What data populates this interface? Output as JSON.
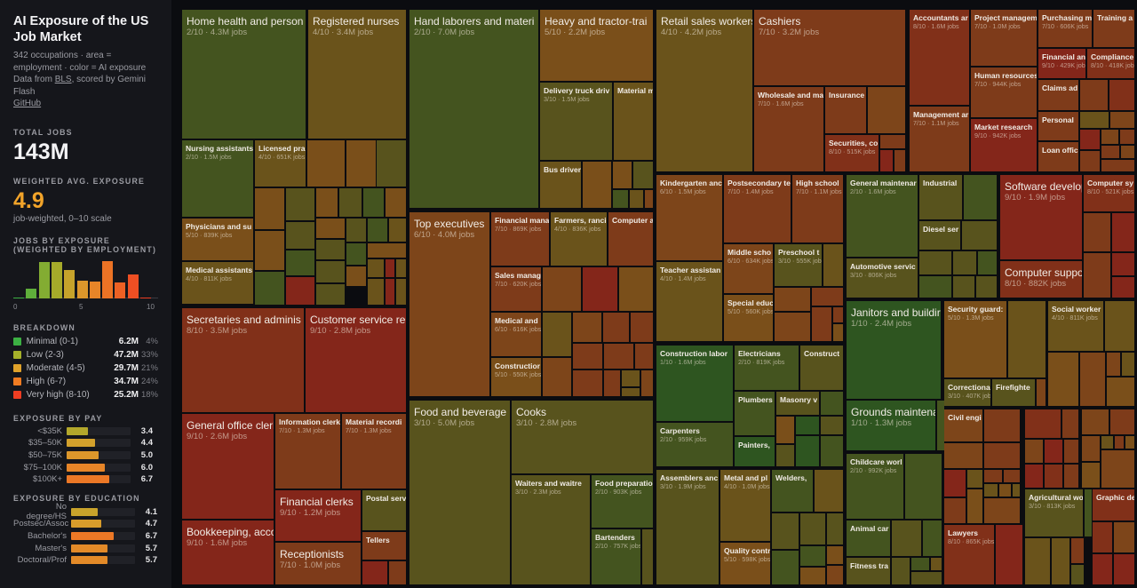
{
  "sidebar": {
    "title": "AI Exposure of the US Job Market",
    "subtitle": "342 occupations · area = employment · color = AI exposure",
    "source_prefix": "Data from ",
    "source_link": "BLS",
    "source_suffix": ", scored by Gemini Flash",
    "github": "GitHub",
    "total_label": "TOTAL JOBS",
    "total_value": "143M",
    "avg_label": "WEIGHTED AVG. EXPOSURE",
    "avg_value": "4.9",
    "avg_note": "job-weighted, 0–10 scale",
    "hist_label": "JOBS BY EXPOSURE",
    "hist_label2": "(WEIGHTED BY EMPLOYMENT)",
    "breakdown_label": "BREAKDOWN",
    "breakdown": [
      {
        "label": "Minimal (0-1)",
        "value": "6.2M",
        "pct": "4%",
        "color": "#3cb043"
      },
      {
        "label": "Low (2-3)",
        "value": "47.2M",
        "pct": "33%",
        "color": "#a6b02a"
      },
      {
        "label": "Moderate (4-5)",
        "value": "29.7M",
        "pct": "21%",
        "color": "#e0a22a"
      },
      {
        "label": "High (6-7)",
        "value": "34.7M",
        "pct": "24%",
        "color": "#f07c22"
      },
      {
        "label": "Very high (8-10)",
        "value": "25.2M",
        "pct": "18%",
        "color": "#ef3d22"
      }
    ],
    "pay_label": "EXPOSURE BY PAY",
    "pay": [
      {
        "label": "<$35K",
        "value": "3.4"
      },
      {
        "label": "$35–50K",
        "value": "4.4"
      },
      {
        "label": "$50–75K",
        "value": "5.0"
      },
      {
        "label": "$75–100K",
        "value": "6.0"
      },
      {
        "label": "$100K+",
        "value": "6.7"
      }
    ],
    "edu_label": "EXPOSURE BY EDUCATION",
    "edu": [
      {
        "label": "No degree/HS",
        "value": "4.1"
      },
      {
        "label": "Postsec/Assoc",
        "value": "4.7"
      },
      {
        "label": "Bachelor's",
        "value": "6.7"
      },
      {
        "label": "Master's",
        "value": "5.7"
      },
      {
        "label": "Doctoral/Prof",
        "value": "5.7"
      }
    ]
  },
  "chart_data": {
    "type": "bar",
    "title": "JOBS BY EXPOSURE (WEIGHTED BY EMPLOYMENT)",
    "categories": [
      0,
      1,
      2,
      3,
      4,
      5,
      6,
      7,
      8,
      9,
      10
    ],
    "values": [
      0.2,
      6.0,
      23.6,
      23.6,
      18.3,
      11.4,
      10.5,
      24.2,
      10.0,
      15.0,
      0.2
    ],
    "xticks": [
      "0",
      "5",
      "10"
    ]
  },
  "score_colors": {
    "1": "#2e5520",
    "2": "#44541f",
    "3": "#58531d",
    "4": "#6a531b",
    "5": "#7a4f1a",
    "6": "#7d451a",
    "7": "#7e3b1a",
    "8": "#813019",
    "9": "#84261a"
  },
  "tiles": [
    {
      "label": "Home health and person",
      "meta": "2/10 · 4.3M jobs",
      "score": 2
    },
    {
      "label": "Registered nurses",
      "meta": "4/10 · 3.4M jobs",
      "score": 4
    },
    {
      "label": "Nursing assistants",
      "meta": "2/10 · 1.5M jobs",
      "score": 2
    },
    {
      "label": "Licensed pra",
      "meta": "4/10 · 651K jobs",
      "score": 4
    },
    {
      "label": "Physicians and su",
      "meta": "5/10 · 839K jobs",
      "score": 5
    },
    {
      "label": "Medical assistants",
      "meta": "4/10 · 811K jobs",
      "score": 4
    },
    {
      "label": "Secretaries and adminis",
      "meta": "8/10 · 3.5M jobs",
      "score": 8
    },
    {
      "label": "Customer service re",
      "meta": "9/10 · 2.8M jobs",
      "score": 9
    },
    {
      "label": "General office clerk",
      "meta": "9/10 · 2.6M jobs",
      "score": 9
    },
    {
      "label": "Bookkeeping, acco",
      "meta": "9/10 · 1.6M jobs",
      "score": 9
    },
    {
      "label": "Information clerk",
      "meta": "7/10 · 1.3M jobs",
      "score": 7
    },
    {
      "label": "Material recordi",
      "meta": "7/10 · 1.3M jobs",
      "score": 7
    },
    {
      "label": "Financial clerks",
      "meta": "9/10 · 1.2M jobs",
      "score": 9
    },
    {
      "label": "Receptionists",
      "meta": "7/10 · 1.0M jobs",
      "score": 7
    },
    {
      "label": "Postal serv",
      "meta": "",
      "score": 3
    },
    {
      "label": "Tellers",
      "meta": "",
      "score": 7
    },
    {
      "label": "Hand laborers and materi",
      "meta": "2/10 · 7.0M jobs",
      "score": 2
    },
    {
      "label": "Heavy and tractor-trai",
      "meta": "5/10 · 2.2M jobs",
      "score": 5
    },
    {
      "label": "Delivery truck driv",
      "meta": "3/10 · 1.5M jobs",
      "score": 3
    },
    {
      "label": "Material m",
      "meta": "",
      "score": 4
    },
    {
      "label": "Bus driver",
      "meta": "",
      "score": 4
    },
    {
      "label": "Top executives",
      "meta": "6/10 · 4.0M jobs",
      "score": 6
    },
    {
      "label": "Financial mana",
      "meta": "7/10 · 869K jobs",
      "score": 7
    },
    {
      "label": "Farmers, ranci",
      "meta": "4/10 · 836K jobs",
      "score": 4
    },
    {
      "label": "Computer a",
      "meta": "",
      "score": 7
    },
    {
      "label": "Sales manag",
      "meta": "7/10 · 620K jobs",
      "score": 7
    },
    {
      "label": "Medical and",
      "meta": "6/10 · 616K jobs",
      "score": 6
    },
    {
      "label": "Constructior",
      "meta": "5/10 · 550K jobs",
      "score": 5
    },
    {
      "label": "Food and beverage",
      "meta": "3/10 · 5.0M jobs",
      "score": 3
    },
    {
      "label": "Cooks",
      "meta": "3/10 · 2.8M jobs",
      "score": 3
    },
    {
      "label": "Waiters and waitre",
      "meta": "3/10 · 2.3M jobs",
      "score": 3
    },
    {
      "label": "Food preparatio",
      "meta": "2/10 · 903K jobs",
      "score": 2
    },
    {
      "label": "Bartenders",
      "meta": "2/10 · 757K jobs",
      "score": 2
    },
    {
      "label": "Retail sales workers",
      "meta": "4/10 · 4.2M jobs",
      "score": 4
    },
    {
      "label": "Cashiers",
      "meta": "7/10 · 3.2M jobs",
      "score": 7
    },
    {
      "label": "Wholesale and ma",
      "meta": "7/10 · 1.6M jobs",
      "score": 7
    },
    {
      "label": "Insurance",
      "meta": "",
      "score": 7
    },
    {
      "label": "Securities, co",
      "meta": "8/10 · 515K jobs",
      "score": 8
    },
    {
      "label": "Accountants ar",
      "meta": "8/10 · 1.6M jobs",
      "score": 8
    },
    {
      "label": "Management ar",
      "meta": "7/10 · 1.1M jobs",
      "score": 7
    },
    {
      "label": "Project managem",
      "meta": "7/10 · 1.0M jobs",
      "score": 7
    },
    {
      "label": "Human resources",
      "meta": "7/10 · 944K jobs",
      "score": 7
    },
    {
      "label": "Market research",
      "meta": "9/10 · 942K jobs",
      "score": 9
    },
    {
      "label": "Purchasing m",
      "meta": "7/10 · 606K jobs",
      "score": 7
    },
    {
      "label": "Training a",
      "meta": "",
      "score": 7
    },
    {
      "label": "Financial an",
      "meta": "9/10 · 429K jobs",
      "score": 9
    },
    {
      "label": "Compliance",
      "meta": "8/10 · 418K jobs",
      "score": 8
    },
    {
      "label": "Claims ad",
      "meta": "",
      "score": 7
    },
    {
      "label": "Personal",
      "meta": "",
      "score": 7
    },
    {
      "label": "Loan offic",
      "meta": "",
      "score": 7
    },
    {
      "label": "Kindergarten anc",
      "meta": "6/10 · 1.5M jobs",
      "score": 6
    },
    {
      "label": "Teacher assistan",
      "meta": "4/10 · 1.4M jobs",
      "score": 4
    },
    {
      "label": "Postsecondary te",
      "meta": "7/10 · 1.4M jobs",
      "score": 7
    },
    {
      "label": "High school",
      "meta": "7/10 · 1.1M jobs",
      "score": 7
    },
    {
      "label": "Middle scho",
      "meta": "6/10 · 634K jobs",
      "score": 6
    },
    {
      "label": "Preschool t",
      "meta": "3/10 · 555K jobs",
      "score": 3
    },
    {
      "label": "Special educ",
      "meta": "5/10 · 560K jobs",
      "score": 5
    },
    {
      "label": "General maintenar",
      "meta": "2/10 · 1.6M jobs",
      "score": 2
    },
    {
      "label": "Automotive servic",
      "meta": "3/10 · 806K jobs",
      "score": 3
    },
    {
      "label": "Industrial",
      "meta": "",
      "score": 3
    },
    {
      "label": "Diesel ser",
      "meta": "",
      "score": 3
    },
    {
      "label": "Software develope",
      "meta": "9/10 · 1.9M jobs",
      "score": 9
    },
    {
      "label": "Computer support",
      "meta": "8/10 · 882K jobs",
      "score": 8
    },
    {
      "label": "Computer sy",
      "meta": "8/10 · 521K jobs",
      "score": 8
    },
    {
      "label": "Construction labor",
      "meta": "1/10 · 1.6M jobs",
      "score": 1
    },
    {
      "label": "Carpenters",
      "meta": "2/10 · 959K jobs",
      "score": 2
    },
    {
      "label": "Electricians",
      "meta": "2/10 · 819K jobs",
      "score": 2
    },
    {
      "label": "Construct",
      "meta": "",
      "score": 3
    },
    {
      "label": "Plumbers",
      "meta": "",
      "score": 2
    },
    {
      "label": "Masonry v",
      "meta": "",
      "score": 3
    },
    {
      "label": "Painters,",
      "meta": "",
      "score": 1
    },
    {
      "label": "Assemblers anc",
      "meta": "3/10 · 1.9M jobs",
      "score": 3
    },
    {
      "label": "Metal and pl",
      "meta": "4/10 · 1.0M jobs",
      "score": 4
    },
    {
      "label": "Welders,",
      "meta": "",
      "score": 2
    },
    {
      "label": "Quality contr",
      "meta": "5/10 · 598K jobs",
      "score": 5
    },
    {
      "label": "Janitors and buildir",
      "meta": "1/10 · 2.4M jobs",
      "score": 1
    },
    {
      "label": "Grounds maintenar",
      "meta": "1/10 · 1.3M jobs",
      "score": 1
    },
    {
      "label": "Childcare worl",
      "meta": "2/10 · 992K jobs",
      "score": 2
    },
    {
      "label": "Animal car",
      "meta": "",
      "score": 2
    },
    {
      "label": "Fitness tra",
      "meta": "",
      "score": 3
    },
    {
      "label": "Security guard:",
      "meta": "5/10 · 1.3M jobs",
      "score": 5
    },
    {
      "label": "Correctional",
      "meta": "3/10 · 407K jobs",
      "score": 3
    },
    {
      "label": "Firefighte",
      "meta": "",
      "score": 3
    },
    {
      "label": "Social worker",
      "meta": "4/10 · 811K jobs",
      "score": 4
    },
    {
      "label": "Civil engi",
      "meta": "",
      "score": 6
    },
    {
      "label": "Lawyers",
      "meta": "8/10 · 865K jobs",
      "score": 8
    },
    {
      "label": "Agricultural wo",
      "meta": "3/10 · 813K jobs",
      "score": 3
    },
    {
      "label": "Graphic de",
      "meta": "",
      "score": 8
    }
  ]
}
